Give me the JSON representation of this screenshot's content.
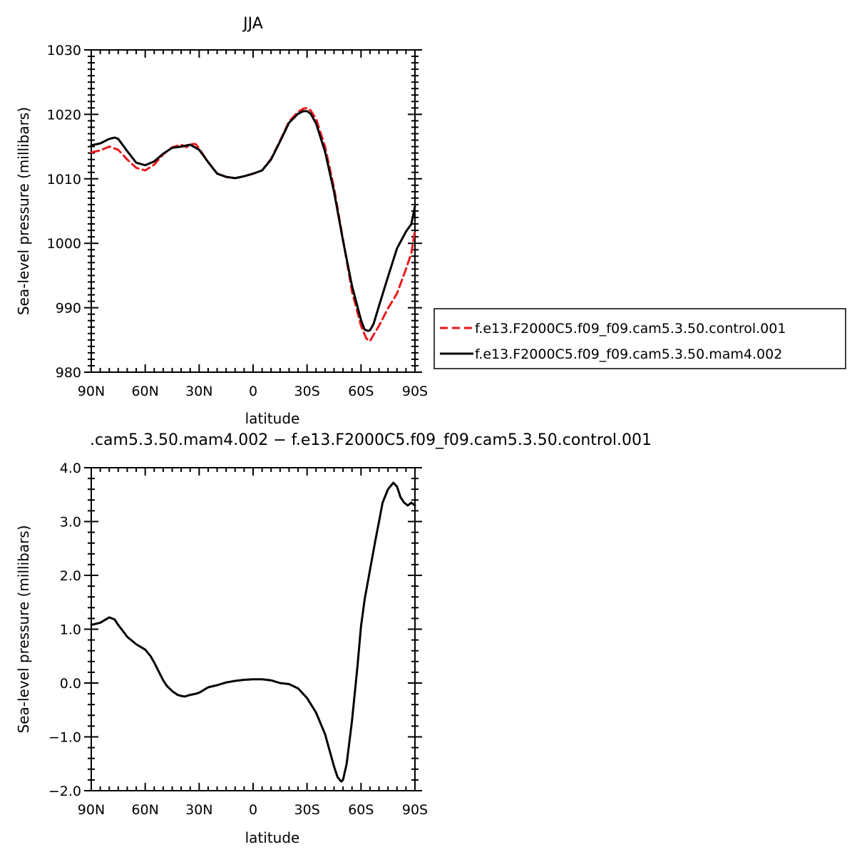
{
  "chart_data": [
    {
      "type": "line",
      "title": "JJA",
      "xlabel": "latitude",
      "ylabel": "Sea-level pressure (millibars)",
      "xlim": [
        -90,
        90
      ],
      "ylim": [
        980,
        1030
      ],
      "x_ticks": [
        {
          "value": -90,
          "label": "90N"
        },
        {
          "value": -60,
          "label": "60N"
        },
        {
          "value": -30,
          "label": "30N"
        },
        {
          "value": 0,
          "label": "0"
        },
        {
          "value": 30,
          "label": "30S"
        },
        {
          "value": 60,
          "label": "60S"
        },
        {
          "value": 90,
          "label": "90S"
        }
      ],
      "y_ticks": [
        {
          "value": 980,
          "label": "980"
        },
        {
          "value": 990,
          "label": "990"
        },
        {
          "value": 1000,
          "label": "1000"
        },
        {
          "value": 1010,
          "label": "1010"
        },
        {
          "value": 1020,
          "label": "1020"
        },
        {
          "value": 1030,
          "label": "1030"
        }
      ],
      "legend_position": "right",
      "series": [
        {
          "name": "f.e13.F2000C5.f09_f09.cam5.3.50.control.001",
          "color": "#e8191c",
          "dash": "dashed",
          "x": [
            -90,
            -85,
            -80,
            -75,
            -70,
            -65,
            -60,
            -55,
            -50,
            -45,
            -40,
            -37,
            -35,
            -32,
            -30,
            -25,
            -20,
            -15,
            -10,
            -5,
            0,
            5,
            10,
            15,
            20,
            25,
            28,
            30,
            32,
            35,
            40,
            45,
            50,
            55,
            60,
            63,
            65,
            67,
            70,
            75,
            80,
            85,
            88,
            90
          ],
          "y": [
            1014.1,
            1014.4,
            1015.0,
            1014.5,
            1013.0,
            1011.7,
            1011.3,
            1012.2,
            1013.8,
            1014.9,
            1015.3,
            1014.9,
            1015.4,
            1015.4,
            1014.7,
            1012.6,
            1010.8,
            1010.3,
            1010.1,
            1010.4,
            1010.8,
            1011.3,
            1013.1,
            1015.9,
            1018.9,
            1020.4,
            1020.9,
            1021.0,
            1020.6,
            1019.3,
            1015.0,
            1008.6,
            1000.6,
            992.5,
            987.2,
            985.2,
            984.8,
            985.8,
            987.2,
            989.9,
            992.2,
            996.0,
            998.5,
            1002.0
          ]
        },
        {
          "name": "f.e13.F2000C5.f09_f09.cam5.3.50.mam4.002",
          "color": "#000000",
          "dash": "solid",
          "x": [
            -90,
            -85,
            -80,
            -77,
            -75,
            -70,
            -65,
            -60,
            -55,
            -50,
            -45,
            -40,
            -35,
            -30,
            -25,
            -20,
            -15,
            -10,
            -5,
            0,
            5,
            10,
            15,
            20,
            25,
            28,
            30,
            32,
            35,
            40,
            45,
            50,
            55,
            60,
            62,
            64,
            65,
            67,
            70,
            75,
            80,
            85,
            88,
            90
          ],
          "y": [
            1015.2,
            1015.5,
            1016.2,
            1016.4,
            1016.2,
            1014.3,
            1012.5,
            1012.1,
            1012.7,
            1013.9,
            1014.8,
            1015.0,
            1015.3,
            1014.5,
            1012.6,
            1010.8,
            1010.3,
            1010.1,
            1010.4,
            1010.8,
            1011.3,
            1013.0,
            1015.8,
            1018.7,
            1020.1,
            1020.5,
            1020.5,
            1020.1,
            1018.6,
            1014.2,
            1008.0,
            1000.4,
            993.4,
            988.1,
            986.6,
            986.4,
            986.5,
            987.5,
            990.3,
            994.8,
            999.2,
            1001.8,
            1003.0,
            1005.7
          ]
        }
      ]
    },
    {
      "type": "line",
      "title": ".cam5.3.50.mam4.002 − f.e13.F2000C5.f09_f09.cam5.3.50.control.001",
      "xlabel": "latitude",
      "ylabel": "Sea-level pressure (millibars)",
      "xlim": [
        -90,
        90
      ],
      "ylim": [
        -2.0,
        4.0
      ],
      "x_ticks": [
        {
          "value": -90,
          "label": "90N"
        },
        {
          "value": -60,
          "label": "60N"
        },
        {
          "value": -30,
          "label": "30N"
        },
        {
          "value": 0,
          "label": "0"
        },
        {
          "value": 30,
          "label": "30S"
        },
        {
          "value": 60,
          "label": "60S"
        },
        {
          "value": 90,
          "label": "90S"
        }
      ],
      "y_ticks": [
        {
          "value": -2.0,
          "label": "−2.0"
        },
        {
          "value": -1.0,
          "label": "−1.0"
        },
        {
          "value": 0.0,
          "label": "0.0"
        },
        {
          "value": 1.0,
          "label": "1.0"
        },
        {
          "value": 2.0,
          "label": "2.0"
        },
        {
          "value": 3.0,
          "label": "3.0"
        },
        {
          "value": 4.0,
          "label": "4.0"
        }
      ],
      "series": [
        {
          "color": "#000000",
          "dash": "solid",
          "x": [
            -90,
            -85,
            -80,
            -77,
            -75,
            -72,
            -70,
            -65,
            -60,
            -57,
            -55,
            -50,
            -48,
            -45,
            -42,
            -40,
            -38,
            -35,
            -32,
            -30,
            -28,
            -25,
            -20,
            -15,
            -10,
            -5,
            0,
            5,
            10,
            15,
            20,
            25,
            30,
            35,
            40,
            45,
            47,
            49,
            50,
            52,
            55,
            58,
            60,
            62,
            65,
            68,
            70,
            72,
            75,
            78,
            80,
            82,
            84,
            86,
            88,
            90
          ],
          "y": [
            1.08,
            1.12,
            1.22,
            1.18,
            1.08,
            0.95,
            0.86,
            0.72,
            0.62,
            0.5,
            0.38,
            0.05,
            -0.05,
            -0.15,
            -0.22,
            -0.24,
            -0.25,
            -0.22,
            -0.2,
            -0.18,
            -0.14,
            -0.08,
            -0.04,
            0.01,
            0.04,
            0.06,
            0.07,
            0.07,
            0.05,
            0.0,
            -0.02,
            -0.1,
            -0.28,
            -0.55,
            -0.95,
            -1.55,
            -1.75,
            -1.83,
            -1.8,
            -1.5,
            -0.7,
            0.3,
            1.05,
            1.55,
            2.1,
            2.65,
            3.0,
            3.35,
            3.6,
            3.72,
            3.65,
            3.45,
            3.35,
            3.3,
            3.35,
            3.3
          ]
        }
      ]
    }
  ]
}
